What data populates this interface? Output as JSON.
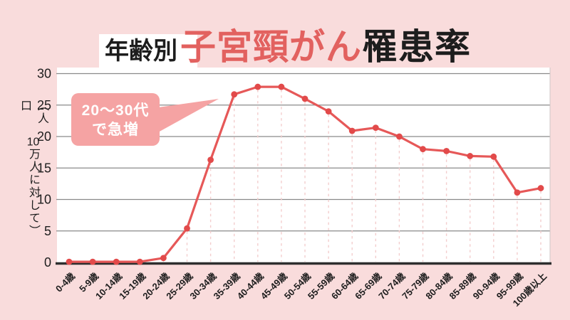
{
  "page": {
    "background": "#f9dcdc"
  },
  "title": {
    "prefix": "年齢別",
    "emphasis": "子宮頸がん",
    "suffix": "罹患率",
    "emphasis_color": "#e2615f",
    "text_color": "#1d1d1d",
    "highlight_bg": "#ffffff"
  },
  "chart_data": {
    "type": "line",
    "title": "年齢別 子宮頸がん罹患率",
    "ylabel": "（人口10万人に対して）",
    "ylabel_parts": [
      "（人口",
      "10",
      "万人に対して）"
    ],
    "xlabel": "",
    "ylim": [
      0,
      30
    ],
    "yticks": [
      0,
      5,
      10,
      15,
      20,
      25,
      30
    ],
    "grid": "horizontal solid gray lines; dashed pink drop lines from each point to x-axis",
    "legend": "none",
    "categories": [
      "0-4歳",
      "5-9歳",
      "10-14歳",
      "15-19歳",
      "20-24歳",
      "25-29歳",
      "30-34歳",
      "35-39歳",
      "40-44歳",
      "45-49歳",
      "50-54歳",
      "55-59歳",
      "60-64歳",
      "65-69歳",
      "70-74歳",
      "75-79歳",
      "80-84歳",
      "85-89歳",
      "90-94歳",
      "95-99歳",
      "100歳以上"
    ],
    "values": [
      0.1,
      0.1,
      0.1,
      0.1,
      0.7,
      5.4,
      16.3,
      26.7,
      27.9,
      27.9,
      26.0,
      24.0,
      20.9,
      21.4,
      20.0,
      18.0,
      17.7,
      16.9,
      16.8,
      11.1,
      11.8
    ],
    "annotation": {
      "line1": "20～30代",
      "line2": "で急増",
      "bg": "#f5a3a3",
      "text_color": "#ffffff"
    },
    "colors": {
      "line": "#e65858",
      "point": "#e24a4a",
      "grid": "#8a8a8a",
      "axis": "#2e2e2e",
      "dropline": "#f3cdcd",
      "plot_bg": "#ffffff",
      "plot_border": "#cfc6c6",
      "tick_text": "#1d1d1d"
    }
  }
}
